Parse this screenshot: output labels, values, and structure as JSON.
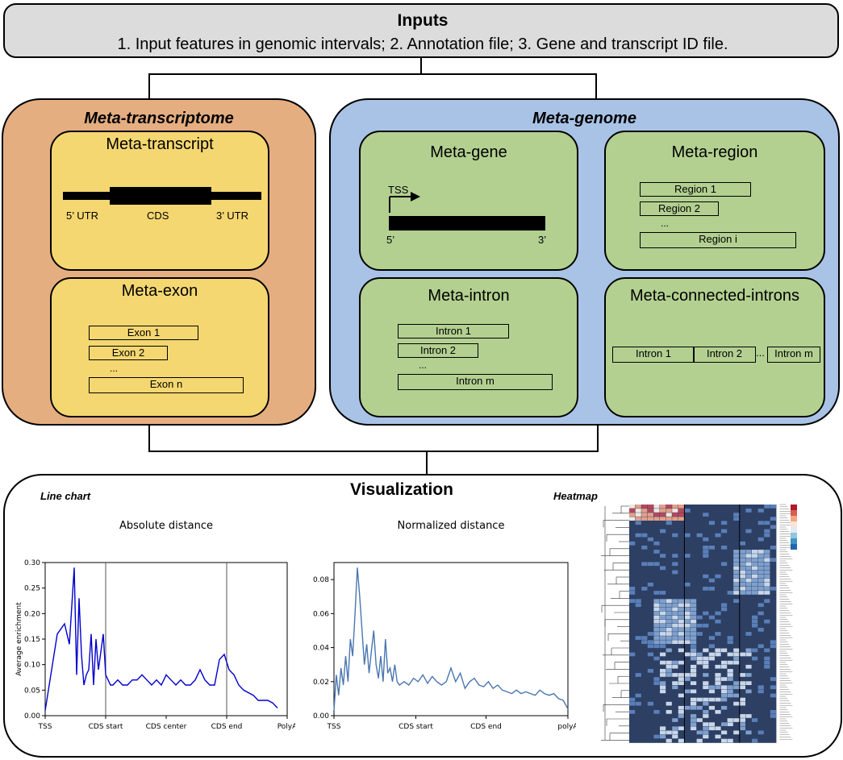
{
  "inputs": {
    "title": "Inputs",
    "text": "1. Input features in genomic intervals;   2. Annotation file;  3. Gene and transcript ID file."
  },
  "transcriptome": {
    "title": "Meta-transcriptome",
    "transcript": {
      "title": "Meta-transcript",
      "utr5": "5’ UTR",
      "cds": "CDS",
      "utr3": "3’ UTR"
    },
    "exon": {
      "title": "Meta-exon",
      "items": [
        "Exon 1",
        "Exon 2",
        "...",
        "Exon  n"
      ]
    }
  },
  "genome": {
    "title": "Meta-genome",
    "gene": {
      "title": "Meta-gene",
      "tss": "TSS",
      "five": "5’",
      "three": "3’"
    },
    "region": {
      "title": "Meta-region",
      "items": [
        "Region 1",
        "Region 2",
        "...",
        "Region i"
      ]
    },
    "intron": {
      "title": "Meta-intron",
      "items": [
        "Intron 1",
        "Intron 2",
        "...",
        "Intron m"
      ]
    },
    "connected": {
      "title": "Meta-connected-introns",
      "items": [
        "Intron 1",
        "Intron 2",
        "...",
        "Intron m"
      ]
    }
  },
  "visualization": {
    "title": "Visualization",
    "line_chart_label": "Line chart",
    "heatmap_label": "Heatmap"
  },
  "chart_data": [
    {
      "type": "line",
      "title": "Absolute distance",
      "ylabel": "Average enrichment",
      "xlabel": "",
      "ylim": [
        0,
        0.3
      ],
      "y_ticks": [
        "0.00",
        "0.05",
        "0.10",
        "0.15",
        "0.20",
        "0.25",
        "0.30"
      ],
      "x_tick_labels": [
        "TSS",
        "CDS start",
        "CDS center",
        "CDS end",
        "PolyA"
      ],
      "vlines_at": [
        "CDS start",
        "CDS end"
      ],
      "color": "#0000cc",
      "x": [
        0.0,
        0.05,
        0.08,
        0.1,
        0.12,
        0.13,
        0.14,
        0.15,
        0.16,
        0.17,
        0.18,
        0.19,
        0.2,
        0.21,
        0.22,
        0.24,
        0.25,
        0.26,
        0.27,
        0.28,
        0.3,
        0.32,
        0.34,
        0.36,
        0.38,
        0.4,
        0.42,
        0.44,
        0.46,
        0.48,
        0.5,
        0.52,
        0.54,
        0.56,
        0.58,
        0.6,
        0.62,
        0.64,
        0.66,
        0.68,
        0.7,
        0.72,
        0.74,
        0.76,
        0.78,
        0.8,
        0.82,
        0.86,
        0.88,
        0.9,
        0.92,
        0.94,
        0.96
      ],
      "y": [
        0.01,
        0.16,
        0.18,
        0.14,
        0.29,
        0.08,
        0.23,
        0.12,
        0.06,
        0.08,
        0.09,
        0.16,
        0.06,
        0.15,
        0.09,
        0.16,
        0.08,
        0.07,
        0.06,
        0.06,
        0.07,
        0.06,
        0.06,
        0.07,
        0.07,
        0.08,
        0.07,
        0.06,
        0.07,
        0.06,
        0.08,
        0.07,
        0.06,
        0.07,
        0.06,
        0.06,
        0.07,
        0.09,
        0.07,
        0.06,
        0.06,
        0.11,
        0.12,
        0.09,
        0.08,
        0.06,
        0.05,
        0.04,
        0.03,
        0.03,
        0.03,
        0.025,
        0.015
      ]
    },
    {
      "type": "line",
      "title": "Normalized distance",
      "ylabel": "",
      "xlabel": "",
      "ylim": [
        0,
        0.09
      ],
      "y_ticks": [
        "0.00",
        "0.02",
        "0.04",
        "0.06",
        "0.08"
      ],
      "x_tick_labels": [
        "TSS",
        "CDS start",
        "CDS end",
        "polyA"
      ],
      "color": "#4a76b0",
      "x": [
        0.0,
        0.01,
        0.02,
        0.03,
        0.04,
        0.05,
        0.06,
        0.07,
        0.08,
        0.09,
        0.1,
        0.11,
        0.12,
        0.13,
        0.14,
        0.15,
        0.16,
        0.17,
        0.18,
        0.19,
        0.2,
        0.21,
        0.22,
        0.23,
        0.24,
        0.25,
        0.26,
        0.27,
        0.28,
        0.3,
        0.32,
        0.34,
        0.36,
        0.38,
        0.4,
        0.42,
        0.44,
        0.46,
        0.48,
        0.5,
        0.52,
        0.54,
        0.56,
        0.58,
        0.6,
        0.62,
        0.64,
        0.66,
        0.68,
        0.7,
        0.72,
        0.74,
        0.76,
        0.78,
        0.8,
        0.82,
        0.84,
        0.86,
        0.88,
        0.9,
        0.92,
        0.94,
        0.96,
        0.98,
        1.0
      ],
      "y": [
        0.003,
        0.024,
        0.012,
        0.028,
        0.018,
        0.035,
        0.02,
        0.045,
        0.035,
        0.06,
        0.087,
        0.07,
        0.05,
        0.03,
        0.042,
        0.025,
        0.038,
        0.05,
        0.03,
        0.022,
        0.035,
        0.02,
        0.045,
        0.025,
        0.028,
        0.02,
        0.03,
        0.02,
        0.018,
        0.02,
        0.018,
        0.022,
        0.02,
        0.024,
        0.019,
        0.023,
        0.02,
        0.018,
        0.02,
        0.028,
        0.02,
        0.025,
        0.016,
        0.02,
        0.022,
        0.018,
        0.017,
        0.02,
        0.016,
        0.018,
        0.015,
        0.014,
        0.013,
        0.015,
        0.013,
        0.014,
        0.013,
        0.012,
        0.015,
        0.013,
        0.012,
        0.013,
        0.01,
        0.009,
        0.004
      ]
    }
  ]
}
